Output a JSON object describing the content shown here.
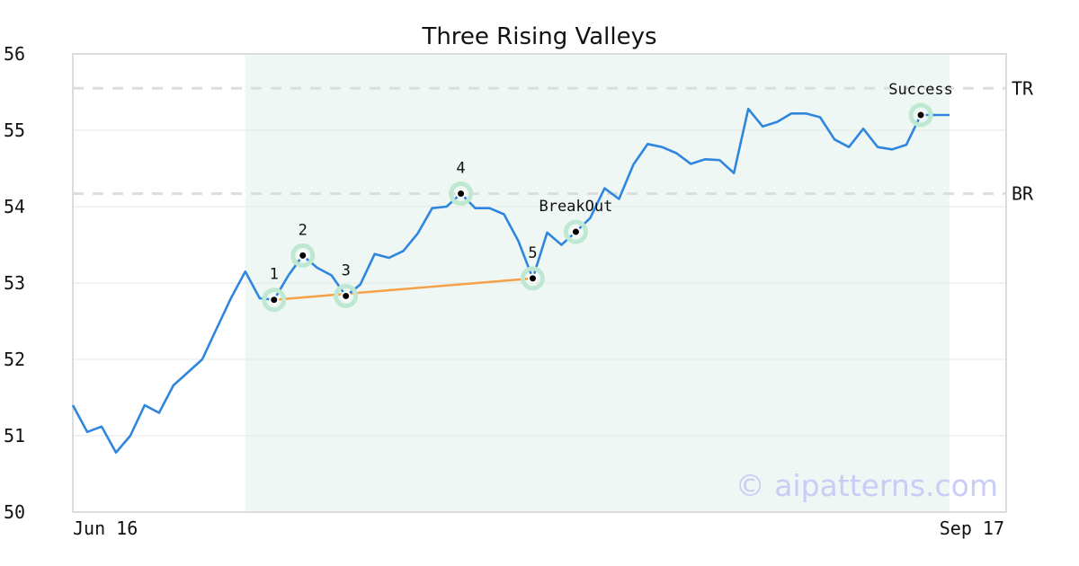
{
  "chart_data": {
    "type": "line",
    "title": "Three Rising Valleys",
    "xlabel": "",
    "ylabel": "",
    "ylim": [
      50,
      56
    ],
    "yticks": [
      "50",
      "51",
      "52",
      "53",
      "54",
      "55",
      "56"
    ],
    "xtick_labels": [
      "Jun 16",
      "Sep 17"
    ],
    "grid": "horizontal",
    "series": [
      {
        "color": "#2e86de",
        "values": [
          51.4,
          51.05,
          51.12,
          50.78,
          51.0,
          51.4,
          51.3,
          51.66,
          51.83,
          52.0,
          52.4,
          52.8,
          53.15,
          52.8,
          52.78,
          53.1,
          53.36,
          53.2,
          53.1,
          52.83,
          52.98,
          53.38,
          53.33,
          53.42,
          53.65,
          53.98,
          54.0,
          54.17,
          53.98,
          53.98,
          53.9,
          53.55,
          53.06,
          53.66,
          53.5,
          53.67,
          53.85,
          54.24,
          54.1,
          54.55,
          54.82,
          54.78,
          54.7,
          54.56,
          54.62,
          54.61,
          54.44,
          55.28,
          55.05,
          55.11,
          55.22,
          55.22,
          55.17,
          54.88,
          54.78,
          55.02,
          54.78,
          54.75,
          54.81,
          55.2,
          55.2,
          55.2
        ]
      }
    ],
    "pattern_points": [
      {
        "label": "1",
        "index": 14,
        "value": 52.78
      },
      {
        "label": "2",
        "index": 16,
        "value": 53.36
      },
      {
        "label": "3",
        "index": 19,
        "value": 52.83
      },
      {
        "label": "4",
        "index": 27,
        "value": 54.17
      },
      {
        "label": "5",
        "index": 32,
        "value": 53.06
      },
      {
        "label": "BreakOut",
        "index": 35,
        "value": 53.67
      },
      {
        "label": "Success",
        "index": 59,
        "value": 55.2
      }
    ],
    "trendline": {
      "color": "#f5a04a",
      "from_index": 14,
      "from_value": 52.78,
      "to_index": 32,
      "to_value": 53.06
    },
    "levels": [
      {
        "label": "TR",
        "value": 55.55
      },
      {
        "label": "BR",
        "value": 54.17
      }
    ],
    "highlight_range": {
      "from_index": 12,
      "to_index": 61
    },
    "colors": {
      "line": "#2e86de",
      "trend": "#f5a04a",
      "highlight": "#eef7f3",
      "marker_ring": "#bfe8d3",
      "level": "#dddddd"
    }
  },
  "watermark": "© aipatterns.com"
}
